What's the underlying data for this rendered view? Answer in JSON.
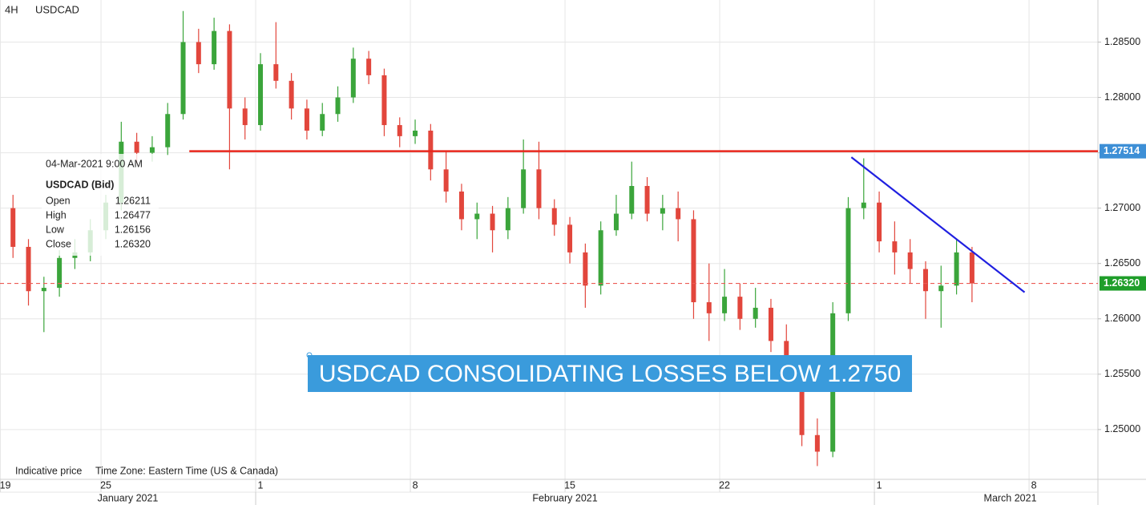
{
  "chart_data": {
    "type": "candlestick",
    "timeframe": "4H",
    "symbol": "USDCAD",
    "footer": "Indicative price",
    "time_zone": "Time Zone: Eastern Time (US & Canada)",
    "annotation": "USDCAD CONSOLIDATING LOSSES BELOW 1.2750",
    "up_color": "#3ba53b",
    "down_color": "#e2463c",
    "xlim": [
      -3.42,
      32.07
    ],
    "ylim": [
      1.2455,
      1.2888
    ],
    "grid": true,
    "xticks": [
      {
        "value": -3.25,
        "label": "19"
      },
      {
        "value": 0,
        "label": "25"
      },
      {
        "value": 5,
        "label": "1"
      },
      {
        "value": 10,
        "label": "8"
      },
      {
        "value": 15,
        "label": "15"
      },
      {
        "value": 20,
        "label": "22"
      },
      {
        "value": 25,
        "label": "1"
      },
      {
        "value": 30,
        "label": "8"
      }
    ],
    "month_labels": [
      "January 2021",
      "February 2021",
      "March 2021"
    ],
    "yticks": [
      {
        "value": 1.25,
        "label": "1.25000"
      },
      {
        "value": 1.255,
        "label": "1.25500"
      },
      {
        "value": 1.26,
        "label": "1.26000"
      },
      {
        "value": 1.265,
        "label": "1.26500"
      },
      {
        "value": 1.27,
        "label": "1.27000"
      },
      {
        "value": 1.275,
        "label": "1.27500"
      },
      {
        "value": 1.28,
        "label": "1.28000"
      },
      {
        "value": 1.285,
        "label": "1.28500"
      }
    ],
    "x": [
      -3,
      -2.5,
      -2,
      -1.5,
      -1,
      -0.5,
      0,
      0.5,
      1,
      1.5,
      2,
      2.5,
      3,
      3.5,
      4,
      4.5,
      5,
      5.5,
      6,
      6.5,
      7,
      7.5,
      8,
      8.5,
      9,
      9.5,
      10,
      10.5,
      11,
      11.5,
      12,
      12.5,
      13,
      13.5,
      14,
      14.5,
      15,
      15.5,
      16,
      16.5,
      17,
      17.5,
      18,
      18.5,
      19,
      19.5,
      20,
      20.5,
      21,
      21.5,
      22,
      22.5,
      23,
      23.5,
      24,
      24.5,
      25,
      25.5,
      26,
      26.5,
      27,
      27.5,
      28
    ],
    "open": [
      1.27,
      1.2665,
      1.2625,
      1.2628,
      1.2655,
      1.266,
      1.268,
      1.2705,
      1.276,
      1.275,
      1.2755,
      1.2785,
      1.285,
      1.283,
      1.286,
      1.279,
      1.2775,
      1.283,
      1.2815,
      1.279,
      1.277,
      1.2785,
      1.28,
      1.2835,
      1.282,
      1.2775,
      1.2765,
      1.277,
      1.2735,
      1.2715,
      1.269,
      1.2695,
      1.268,
      1.27,
      1.2735,
      1.27,
      1.2685,
      1.266,
      1.263,
      1.268,
      1.2695,
      1.272,
      1.2695,
      1.27,
      1.269,
      1.2615,
      1.2605,
      1.262,
      1.26,
      1.261,
      1.258,
      1.255,
      1.2495,
      1.248,
      1.2605,
      1.27,
      1.2705,
      1.267,
      1.266,
      1.2645,
      1.2625,
      1.263,
      1.266
    ],
    "high": [
      1.2712,
      1.2672,
      1.2638,
      1.2662,
      1.2672,
      1.269,
      1.2712,
      1.2778,
      1.2768,
      1.2765,
      1.2795,
      1.2878,
      1.2862,
      1.2872,
      1.2866,
      1.28,
      1.284,
      1.2868,
      1.2822,
      1.2798,
      1.2795,
      1.281,
      1.2845,
      1.2842,
      1.2826,
      1.2782,
      1.278,
      1.2776,
      1.2752,
      1.2722,
      1.2705,
      1.2702,
      1.271,
      1.2762,
      1.276,
      1.2708,
      1.2692,
      1.2668,
      1.2688,
      1.2712,
      1.2742,
      1.2728,
      1.2712,
      1.2715,
      1.2698,
      1.265,
      1.2645,
      1.2632,
      1.2628,
      1.2618,
      1.2595,
      1.2558,
      1.251,
      1.2615,
      1.271,
      1.2745,
      1.2715,
      1.2688,
      1.2672,
      1.2652,
      1.2648,
      1.2672,
      1.2665
    ],
    "low": [
      1.2655,
      1.2612,
      1.2588,
      1.262,
      1.2645,
      1.2652,
      1.2672,
      1.2698,
      1.274,
      1.2742,
      1.2748,
      1.278,
      1.2822,
      1.2825,
      1.2735,
      1.2762,
      1.277,
      1.2808,
      1.278,
      1.2762,
      1.2765,
      1.2778,
      1.2795,
      1.2812,
      1.2765,
      1.2755,
      1.2758,
      1.2725,
      1.2705,
      1.268,
      1.2672,
      1.266,
      1.2672,
      1.2695,
      1.269,
      1.2675,
      1.265,
      1.261,
      1.2622,
      1.2675,
      1.269,
      1.2688,
      1.268,
      1.267,
      1.26,
      1.258,
      1.2598,
      1.259,
      1.2592,
      1.257,
      1.2535,
      1.2485,
      1.2467,
      1.2475,
      1.2598,
      1.269,
      1.266,
      1.264,
      1.2632,
      1.26,
      1.2592,
      1.2622,
      1.2615
    ],
    "close": [
      1.2665,
      1.2625,
      1.2628,
      1.2655,
      1.266,
      1.268,
      1.2705,
      1.276,
      1.275,
      1.2755,
      1.2785,
      1.285,
      1.283,
      1.286,
      1.279,
      1.2775,
      1.283,
      1.2815,
      1.279,
      1.277,
      1.2785,
      1.28,
      1.2835,
      1.282,
      1.2775,
      1.2765,
      1.277,
      1.2735,
      1.2715,
      1.269,
      1.2695,
      1.268,
      1.27,
      1.2735,
      1.27,
      1.2685,
      1.266,
      1.263,
      1.268,
      1.2695,
      1.272,
      1.2695,
      1.27,
      1.269,
      1.2615,
      1.2605,
      1.262,
      1.26,
      1.261,
      1.258,
      1.255,
      1.2495,
      1.248,
      1.2605,
      1.27,
      1.2705,
      1.267,
      1.266,
      1.2645,
      1.2625,
      1.263,
      1.266,
      1.2632
    ],
    "resistance": {
      "value": 1.27514,
      "label": "1.27514",
      "start_x": 2.7,
      "color": "#e8261c",
      "label_color": "#3d8fd6"
    },
    "last_price": {
      "value": 1.2632,
      "label": "1.26320",
      "color": "#ec5b55",
      "label_color": "#1f9e2a"
    },
    "trendline": {
      "x": [
        24.1,
        29.7
      ],
      "y": [
        1.2746,
        1.2624
      ],
      "color": "#1f1fe0"
    },
    "tooltip": {
      "date": "04-Mar-2021 9:00 AM",
      "symbol": "USDCAD (Bid)",
      "rows": [
        [
          "Open",
          "1.26211"
        ],
        [
          "High",
          "1.26477"
        ],
        [
          "Low",
          "1.26156"
        ],
        [
          "Close",
          "1.26320"
        ]
      ]
    }
  }
}
